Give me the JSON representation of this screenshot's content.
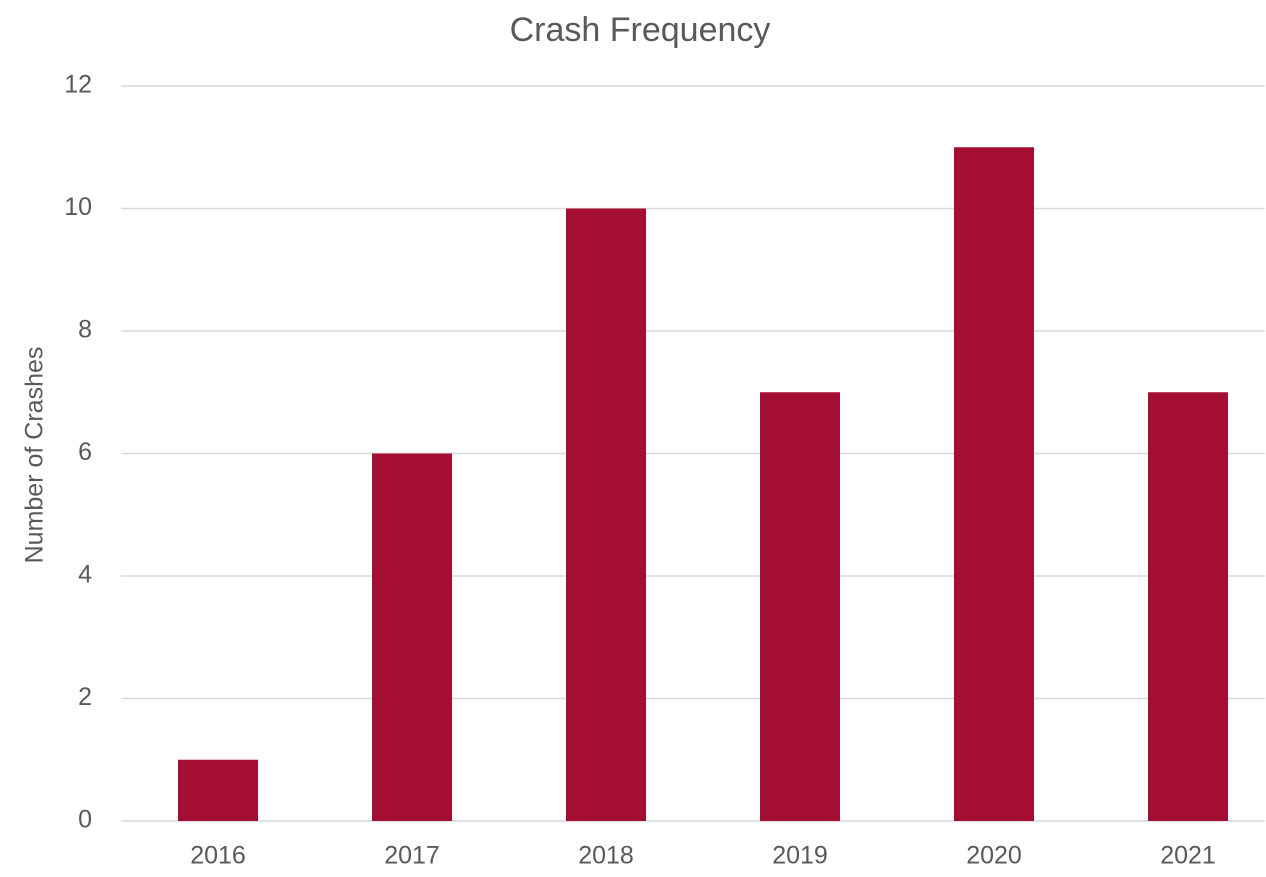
{
  "chart_data": {
    "type": "bar",
    "title": "Crash Frequency",
    "y_label": "Number of Crashes",
    "categories": [
      "2016",
      "2017",
      "2018",
      "2019",
      "2020",
      "2021"
    ],
    "values": [
      1,
      6,
      10,
      7,
      11,
      7
    ],
    "color": "#a50e33",
    "ylim": [
      0,
      12
    ],
    "yticks": [
      0,
      2,
      4,
      6,
      8,
      10,
      12
    ],
    "grid": true
  }
}
